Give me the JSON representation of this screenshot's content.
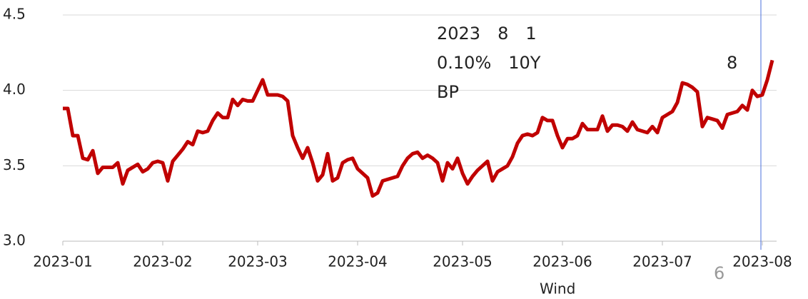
{
  "chart_data": {
    "type": "line",
    "annotations": [
      "2023　8　1",
      "0.10%　10Y",
      "BP",
      "8",
      "6",
      "Wind"
    ],
    "categories": [
      "2023-01",
      null,
      null,
      null,
      null,
      null,
      null,
      null,
      null,
      null,
      null,
      null,
      null,
      null,
      null,
      null,
      null,
      null,
      null,
      null,
      "2023-02",
      null,
      null,
      null,
      null,
      null,
      null,
      null,
      null,
      null,
      null,
      null,
      null,
      null,
      null,
      null,
      null,
      null,
      null,
      "2023-03",
      null,
      null,
      null,
      null,
      null,
      null,
      null,
      null,
      null,
      null,
      null,
      null,
      null,
      null,
      null,
      null,
      null,
      null,
      null,
      "2023-04",
      null,
      null,
      null,
      null,
      null,
      null,
      null,
      null,
      null,
      null,
      null,
      null,
      null,
      null,
      null,
      null,
      null,
      null,
      null,
      null,
      "2023-05",
      null,
      null,
      null,
      null,
      null,
      null,
      null,
      null,
      null,
      null,
      null,
      null,
      null,
      null,
      null,
      null,
      null,
      null,
      null,
      "2023-06",
      null,
      null,
      null,
      null,
      null,
      null,
      null,
      null,
      null,
      null,
      null,
      null,
      null,
      null,
      null,
      null,
      null,
      null,
      null,
      "2023-07",
      null,
      null,
      null,
      null,
      null,
      null,
      null,
      null,
      null,
      null,
      null,
      null,
      null,
      null,
      null,
      null,
      null,
      null,
      null,
      "2023-08",
      null,
      null
    ],
    "values": [
      3.88,
      3.88,
      3.7,
      3.7,
      3.55,
      3.54,
      3.6,
      3.45,
      3.49,
      3.49,
      3.49,
      3.52,
      3.38,
      3.47,
      3.49,
      3.51,
      3.46,
      3.48,
      3.52,
      3.53,
      3.52,
      3.4,
      3.53,
      3.57,
      3.61,
      3.66,
      3.64,
      3.73,
      3.72,
      3.73,
      3.8,
      3.85,
      3.82,
      3.82,
      3.94,
      3.9,
      3.94,
      3.93,
      3.93,
      4.0,
      4.07,
      3.97,
      3.97,
      3.97,
      3.96,
      3.93,
      3.7,
      3.62,
      3.55,
      3.62,
      3.52,
      3.4,
      3.44,
      3.58,
      3.4,
      3.42,
      3.52,
      3.54,
      3.55,
      3.48,
      3.45,
      3.42,
      3.3,
      3.32,
      3.4,
      3.41,
      3.42,
      3.43,
      3.5,
      3.55,
      3.58,
      3.59,
      3.55,
      3.57,
      3.55,
      3.52,
      3.4,
      3.52,
      3.48,
      3.55,
      3.45,
      3.38,
      3.43,
      3.47,
      3.5,
      3.53,
      3.4,
      3.46,
      3.48,
      3.5,
      3.56,
      3.65,
      3.7,
      3.71,
      3.7,
      3.72,
      3.82,
      3.8,
      3.8,
      3.7,
      3.62,
      3.68,
      3.68,
      3.7,
      3.78,
      3.74,
      3.74,
      3.74,
      3.83,
      3.73,
      3.77,
      3.77,
      3.76,
      3.73,
      3.79,
      3.74,
      3.73,
      3.72,
      3.76,
      3.72,
      3.82,
      3.84,
      3.86,
      3.92,
      4.05,
      4.04,
      4.02,
      3.99,
      3.76,
      3.82,
      3.81,
      3.8,
      3.75,
      3.84,
      3.85,
      3.86,
      3.9,
      3.87,
      4.0,
      3.96,
      3.97,
      4.07,
      4.2
    ],
    "color": "#c00000",
    "ylim": [
      3.0,
      4.5
    ],
    "yticks": [
      {
        "value": 3.0,
        "label": "3.0"
      },
      {
        "value": 3.5,
        "label": "3.5"
      },
      {
        "value": 4.0,
        "label": "4.0"
      },
      {
        "value": 4.5,
        "label": "4.5"
      }
    ],
    "grid": true
  }
}
